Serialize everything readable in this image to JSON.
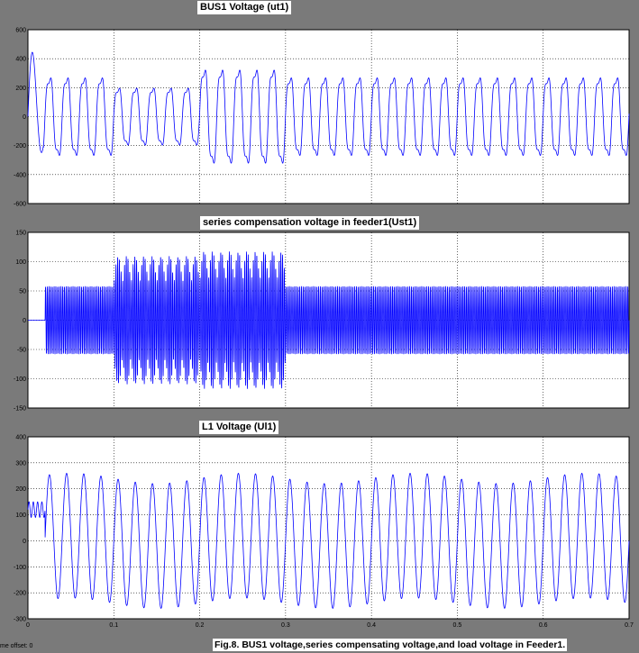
{
  "chart_data": [
    {
      "type": "line",
      "title": "BUS1 Voltage (ut1)",
      "ylim": [
        -600,
        600
      ],
      "yticks": [
        600,
        400,
        200,
        0,
        -200,
        -400,
        -600
      ],
      "xlim": [
        0,
        0.7
      ],
      "series": [
        {
          "segments": [
            {
              "t0": 0.0,
              "t1": 0.1,
              "amplitude": 300,
              "note": "disturbed start"
            },
            {
              "t0": 0.1,
              "t1": 0.2,
              "amplitude": 220
            },
            {
              "t0": 0.2,
              "t1": 0.3,
              "amplitude": 360
            },
            {
              "t0": 0.3,
              "t1": 0.7,
              "amplitude": 300
            }
          ],
          "frequency_hz": 50,
          "startup_peak": 540
        }
      ],
      "color": "#0000ff"
    },
    {
      "type": "line",
      "title": "series compensation voltage in feeder1(Ust1)",
      "ylim": [
        -150,
        150
      ],
      "yticks": [
        150,
        100,
        50,
        0,
        -50,
        -100,
        -150
      ],
      "xlim": [
        0,
        0.7
      ],
      "series": [
        {
          "segments": [
            {
              "t0": 0.0,
              "t1": 0.02,
              "amplitude": 0
            },
            {
              "t0": 0.02,
              "t1": 0.1,
              "amplitude": 58
            },
            {
              "t0": 0.1,
              "t1": 0.2,
              "amplitude": 110
            },
            {
              "t0": 0.2,
              "t1": 0.3,
              "amplitude": 118
            },
            {
              "t0": 0.3,
              "t1": 0.7,
              "amplitude": 58
            }
          ],
          "frequency_hz": 500
        }
      ],
      "color": "#0000ff"
    },
    {
      "type": "line",
      "title": "L1 Voltage (Ul1)",
      "ylim": [
        -300,
        400
      ],
      "yticks": [
        400,
        300,
        200,
        100,
        0,
        -100,
        -200,
        -300
      ],
      "xlim": [
        0,
        0.7
      ],
      "xticks": [
        0,
        0.1,
        0.2,
        0.3,
        0.4,
        0.5,
        0.6,
        0.7
      ],
      "series": [
        {
          "segments": [
            {
              "t0": 0.0,
              "t1": 0.7,
              "amplitude": 240
            }
          ],
          "frequency_hz": 50
        }
      ],
      "color": "#0000ff"
    }
  ],
  "labels": {
    "time_offset": "me offset: 0",
    "caption": "Fig.8. BUS1 voltage,series compensating voltage,and load voltage in Feeder1."
  },
  "colors": {
    "background": "#7a7a7a",
    "plot_background": "#ffffff",
    "trace": "#0000ff",
    "grid": "#000000"
  }
}
